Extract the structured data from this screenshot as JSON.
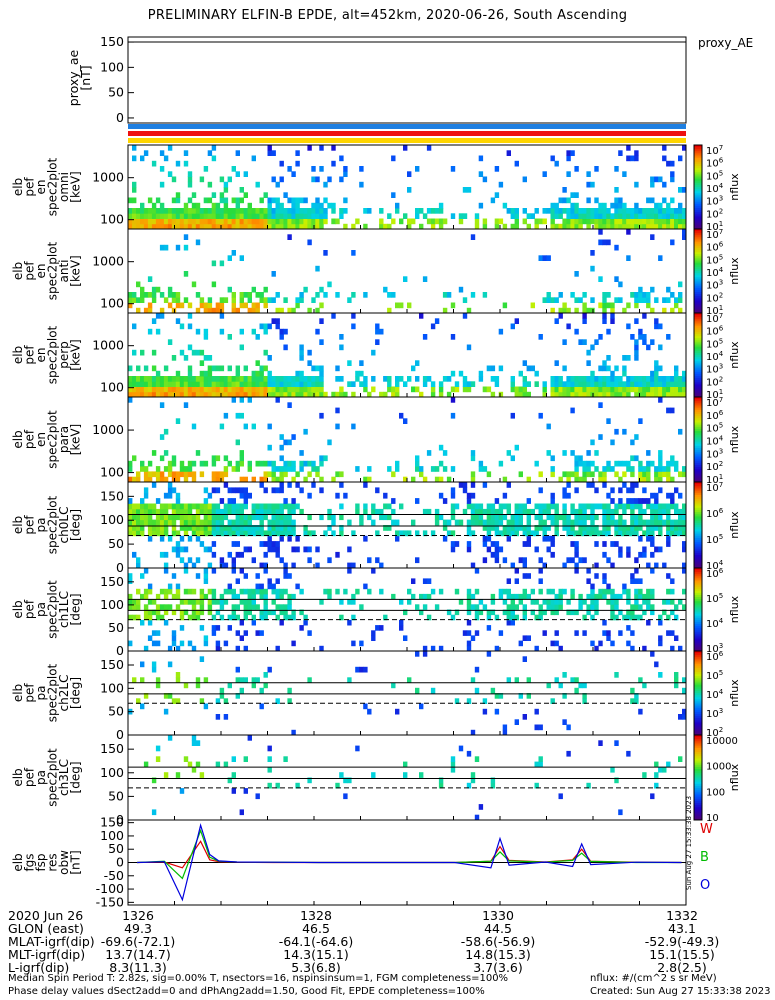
{
  "title": "PRELIMINARY ELFIN-B EPDE, alt=452km, 2020-06-26, South Ascending",
  "colors": {
    "status_blue": "#1f7fe0",
    "status_red": "#ee1111",
    "status_yellow": "#ffd500",
    "mag_w": "#dd0000",
    "mag_b": "#00bb00",
    "mag_o": "#0000dd"
  },
  "chart_data": [
    {
      "type": "line",
      "panel": "proxy_ae",
      "ylabel_lines": [
        "proxy_ae",
        "[nT]"
      ],
      "legend": "proxy_AE",
      "yticks": [
        "150",
        "100",
        "50",
        "0"
      ],
      "ylim": [
        -10,
        160
      ],
      "series": []
    },
    {
      "type": "heatmap",
      "panel": "en_spec2plot_omni",
      "ylabel_lines": [
        "elb",
        "pef",
        "en",
        "spec2plot",
        "omni",
        "[keV]"
      ],
      "yticks": [
        "1000",
        "100"
      ],
      "log_y": true,
      "colorbar": {
        "label": "nflux",
        "ticks": [
          "10^7",
          "10^6",
          "10^5",
          "10^4",
          "10^3",
          "10^2",
          "10^1"
        ]
      }
    },
    {
      "type": "heatmap",
      "panel": "en_spec2plot_anti",
      "ylabel_lines": [
        "elb",
        "pef",
        "en",
        "spec2plot",
        "anti",
        "[keV]"
      ],
      "yticks": [
        "1000",
        "100"
      ],
      "log_y": true,
      "colorbar": {
        "label": "nflux",
        "ticks": [
          "10^7",
          "10^6",
          "10^5",
          "10^4",
          "10^3",
          "10^2",
          "10^1"
        ]
      }
    },
    {
      "type": "heatmap",
      "panel": "en_spec2plot_perp",
      "ylabel_lines": [
        "elb",
        "pef",
        "en",
        "spec2plot",
        "perp",
        "[keV]"
      ],
      "yticks": [
        "1000",
        "100"
      ],
      "log_y": true,
      "colorbar": {
        "label": "nflux",
        "ticks": [
          "10^7",
          "10^6",
          "10^5",
          "10^4",
          "10^3",
          "10^2",
          "10^1"
        ]
      }
    },
    {
      "type": "heatmap",
      "panel": "en_spec2plot_para",
      "ylabel_lines": [
        "elb",
        "pef",
        "en",
        "spec2plot",
        "para",
        "[keV]"
      ],
      "yticks": [
        "1000",
        "100"
      ],
      "log_y": true,
      "colorbar": {
        "label": "nflux",
        "ticks": [
          "10^7",
          "10^6",
          "10^5",
          "10^4",
          "10^3",
          "10^2",
          "10^1"
        ]
      }
    },
    {
      "type": "heatmap",
      "panel": "pa_spec2plot_ch0LC",
      "ylabel_lines": [
        "elb",
        "pef",
        "pa",
        "spec2plot",
        "ch0LC",
        "[deg]"
      ],
      "yticks": [
        "150",
        "100",
        "50",
        "0"
      ],
      "ylim": [
        0,
        180
      ],
      "colorbar": {
        "label": "nflux",
        "ticks": [
          "10^7",
          "10^6",
          "10^5",
          "10^4"
        ]
      }
    },
    {
      "type": "heatmap",
      "panel": "pa_spec2plot_ch1LC",
      "ylabel_lines": [
        "elb",
        "pef",
        "pa",
        "spec2plot",
        "ch1LC",
        "[deg]"
      ],
      "yticks": [
        "150",
        "100",
        "50",
        "0"
      ],
      "ylim": [
        0,
        180
      ],
      "colorbar": {
        "label": "nflux",
        "ticks": [
          "10^6",
          "10^5",
          "10^4",
          "10^3"
        ]
      }
    },
    {
      "type": "heatmap",
      "panel": "pa_spec2plot_ch2LC",
      "ylabel_lines": [
        "elb",
        "pef",
        "pa",
        "spec2plot",
        "ch2LC",
        "[deg]"
      ],
      "yticks": [
        "150",
        "100",
        "50",
        "0"
      ],
      "ylim": [
        0,
        180
      ],
      "colorbar": {
        "label": "nflux",
        "ticks": [
          "10^6",
          "10^5",
          "10^4",
          "10^3",
          "10^2"
        ]
      }
    },
    {
      "type": "heatmap",
      "panel": "pa_spec2plot_ch3LC",
      "ylabel_lines": [
        "elb",
        "pef",
        "pa",
        "spec2plot",
        "ch3LC",
        "[deg]"
      ],
      "yticks": [
        "150",
        "100",
        "50",
        "0"
      ],
      "ylim": [
        0,
        180
      ],
      "colorbar": {
        "label": "nflux",
        "ticks": [
          "10000",
          "1000",
          "100",
          "10"
        ]
      }
    },
    {
      "type": "line",
      "panel": "fgs_fsp_res_obw",
      "ylabel_lines": [
        "elb",
        "fgs",
        "fsp",
        "res",
        "obw",
        "[nT]"
      ],
      "yticks": [
        "150",
        "100",
        "50",
        "0",
        "-50",
        "-100",
        "-150"
      ],
      "ylim": [
        -160,
        160
      ],
      "series": [
        {
          "name": "W",
          "x": [
            1326.0,
            1326.3,
            1326.5,
            1326.7,
            1326.8,
            1326.9,
            1327.1,
            1327.5,
            1328.0,
            1328.5,
            1329.0,
            1329.5,
            1329.9,
            1330.0,
            1330.1,
            1330.5,
            1330.8,
            1330.9,
            1331.0,
            1331.5,
            1332.0
          ],
          "y": [
            0,
            2,
            -20,
            80,
            10,
            3,
            1,
            0,
            0,
            0,
            0,
            0,
            5,
            60,
            8,
            2,
            10,
            50,
            5,
            1,
            0
          ]
        },
        {
          "name": "B",
          "x": [
            1326.0,
            1326.3,
            1326.5,
            1326.7,
            1326.8,
            1326.9,
            1327.1,
            1327.5,
            1328.0,
            1328.5,
            1329.0,
            1329.5,
            1329.9,
            1330.0,
            1330.1,
            1330.5,
            1330.8,
            1330.9,
            1331.0,
            1331.5,
            1332.0
          ],
          "y": [
            0,
            5,
            -60,
            120,
            20,
            5,
            2,
            1,
            0,
            0,
            0,
            0,
            5,
            40,
            6,
            1,
            8,
            35,
            4,
            0,
            0
          ]
        },
        {
          "name": "O",
          "x": [
            1326.0,
            1326.3,
            1326.5,
            1326.7,
            1326.8,
            1326.9,
            1327.1,
            1327.5,
            1328.0,
            1328.5,
            1329.0,
            1329.5,
            1329.9,
            1330.0,
            1330.1,
            1330.5,
            1330.8,
            1330.9,
            1331.0,
            1331.5,
            1332.0
          ],
          "y": [
            0,
            3,
            -140,
            140,
            30,
            6,
            2,
            1,
            0,
            0,
            0,
            0,
            -20,
            90,
            -10,
            2,
            -15,
            70,
            -8,
            1,
            0
          ]
        }
      ],
      "side_text": "Sun Aug 27 15:33:38 2023"
    }
  ],
  "x_axis": {
    "ticks": [
      "1326",
      "1328",
      "1330",
      "1332"
    ],
    "rows": [
      {
        "label": "2020 Jun 26",
        "values": [
          "1326",
          "1328",
          "1330",
          "1332"
        ]
      },
      {
        "label": "GLON (east)",
        "values": [
          "49.3",
          "46.5",
          "44.5",
          "43.1"
        ]
      },
      {
        "label": "MLAT-igrf(dip)",
        "values": [
          "-69.6(-72.1)",
          "-64.1(-64.6)",
          "-58.6(-56.9)",
          "-52.9(-49.3)"
        ]
      },
      {
        "label": "MLT-igrf(dip)",
        "values": [
          "13.7(14.7)",
          "14.3(15.1)",
          "14.8(15.3)",
          "15.1(15.5)"
        ]
      },
      {
        "label": "L-igrf(dip)",
        "values": [
          "8.3(11.3)",
          "5.3(6.8)",
          "3.7(3.6)",
          "2.8(2.5)"
        ]
      }
    ]
  },
  "footer": {
    "line1": "Median Spin Period T: 2.82s, sig=0.00% T, nsectors=16, nspinsinsum=1, FGM completeness=100%",
    "line2": "Phase delay values dSect2add=0 and dPhAng2add=1.50, Good Fit, EPDE completeness=100%",
    "right1": "nflux: #/(cm^2 s sr MeV)",
    "right2": "Created: Sun Aug 27 15:33:38 2023"
  }
}
